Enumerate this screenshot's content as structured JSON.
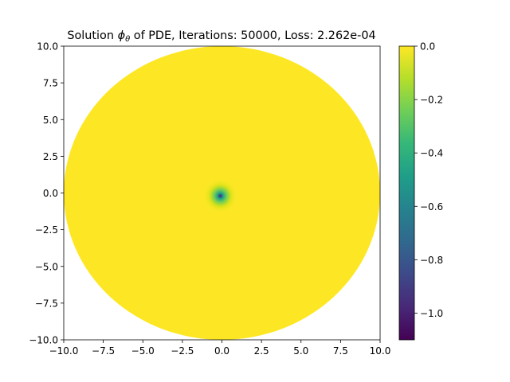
{
  "chart_data": {
    "type": "heatmap",
    "title": "Solution ϕ_θ of PDE, Iterations: 50000, Loss: 2.262e-04",
    "title_parts": {
      "prefix": "Solution ",
      "symbol": "ϕ",
      "subscript": "θ",
      "suffix": " of PDE, Iterations: 50000, Loss: 2.262e-04"
    },
    "xlabel": "",
    "ylabel": "",
    "xlim": [
      -10,
      10
    ],
    "ylim": [
      -10,
      10
    ],
    "x_ticks": [
      -10,
      -7.5,
      -5,
      -2.5,
      0,
      2.5,
      5,
      7.5,
      10
    ],
    "x_tick_labels": [
      "−10.0",
      "−7.5",
      "−5.0",
      "−2.5",
      "0.0",
      "2.5",
      "5.0",
      "7.5",
      "10.0"
    ],
    "y_ticks": [
      10,
      7.5,
      5,
      2.5,
      0,
      -2.5,
      -5,
      -7.5,
      -10
    ],
    "y_tick_labels": [
      "10.0",
      "7.5",
      "5.0",
      "2.5",
      "0.0",
      "−2.5",
      "−5.0",
      "−7.5",
      "−10.0"
    ],
    "domain": {
      "shape": "disk",
      "center": [
        0,
        0
      ],
      "radius": 10
    },
    "field": {
      "background_value": 0.0,
      "source": {
        "x": -0.1,
        "y": -0.2,
        "min_value": -1.1
      }
    },
    "grid": false,
    "colormap": "viridis",
    "colorbar": {
      "range": [
        -1.1,
        0.0
      ],
      "ticks": [
        0.0,
        -0.2,
        -0.4,
        -0.6,
        -0.8,
        -1.0
      ],
      "tick_labels": [
        "0.0",
        "−0.2",
        "−0.4",
        "−0.6",
        "−0.8",
        "−1.0"
      ],
      "colors": [
        "#440154",
        "#482878",
        "#3e4989",
        "#31688e",
        "#26828e",
        "#1f9e89",
        "#35b779",
        "#6ece58",
        "#b5de2b",
        "#fde725"
      ]
    }
  }
}
